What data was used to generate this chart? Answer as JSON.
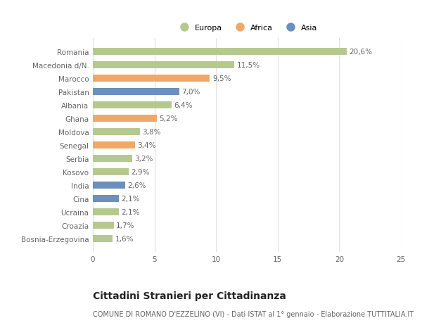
{
  "categories": [
    "Romania",
    "Macedonia d/N.",
    "Marocco",
    "Pakistan",
    "Albania",
    "Ghana",
    "Moldova",
    "Senegal",
    "Serbia",
    "Kosovo",
    "India",
    "Cina",
    "Ucraina",
    "Croazia",
    "Bosnia-Erzegovina"
  ],
  "values": [
    20.6,
    11.5,
    9.5,
    7.0,
    6.4,
    5.2,
    3.8,
    3.4,
    3.2,
    2.9,
    2.6,
    2.1,
    2.1,
    1.7,
    1.6
  ],
  "labels": [
    "20,6%",
    "11,5%",
    "9,5%",
    "7,0%",
    "6,4%",
    "5,2%",
    "3,8%",
    "3,4%",
    "3,2%",
    "2,9%",
    "2,6%",
    "2,1%",
    "2,1%",
    "1,7%",
    "1,6%"
  ],
  "continents": [
    "Europa",
    "Europa",
    "Africa",
    "Asia",
    "Europa",
    "Africa",
    "Europa",
    "Africa",
    "Europa",
    "Europa",
    "Asia",
    "Asia",
    "Europa",
    "Europa",
    "Europa"
  ],
  "colors": {
    "Europa": "#b5c98e",
    "Africa": "#f0a868",
    "Asia": "#6b8fbe"
  },
  "legend": [
    "Europa",
    "Africa",
    "Asia"
  ],
  "legend_colors": [
    "#b5c98e",
    "#f0a868",
    "#6b8fbe"
  ],
  "xlim": [
    0,
    25
  ],
  "xticks": [
    0,
    5,
    10,
    15,
    20,
    25
  ],
  "title": "Cittadini Stranieri per Cittadinanza",
  "subtitle": "COMUNE DI ROMANO D'EZZELINO (VI) - Dati ISTAT al 1° gennaio - Elaborazione TUTTITALIA.IT",
  "background_color": "#ffffff",
  "bar_height": 0.55,
  "label_fontsize": 7.5,
  "tick_fontsize": 7.5,
  "title_fontsize": 10,
  "subtitle_fontsize": 7
}
